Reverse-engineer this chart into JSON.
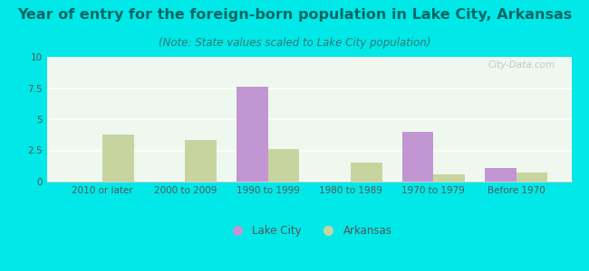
{
  "title": "Year of entry for the foreign-born population in Lake City, Arkansas",
  "subtitle": "(Note: State values scaled to Lake City population)",
  "categories": [
    "2010 or later",
    "2000 to 2009",
    "1990 to 1999",
    "1980 to 1989",
    "1970 to 1979",
    "Before 1970"
  ],
  "lake_city": [
    0,
    0,
    7.6,
    0,
    4.0,
    1.1
  ],
  "arkansas": [
    3.8,
    3.3,
    2.6,
    1.5,
    0.6,
    0.7
  ],
  "lake_city_color": "#c196d2",
  "arkansas_color": "#c8d4a0",
  "background_outer": "#00e8e8",
  "background_inner_top": "#e8f5e0",
  "background_inner_bottom": "#f8fff8",
  "ylim": [
    0,
    10
  ],
  "yticks": [
    0,
    2.5,
    5,
    7.5,
    10
  ],
  "legend_lake_city": "Lake City",
  "legend_arkansas": "Arkansas",
  "bar_width": 0.38,
  "title_fontsize": 11.5,
  "subtitle_fontsize": 8.5,
  "tick_fontsize": 7.5,
  "legend_fontsize": 8.5,
  "title_color": "#006666",
  "subtitle_color": "#337777",
  "tick_color": "#555555"
}
